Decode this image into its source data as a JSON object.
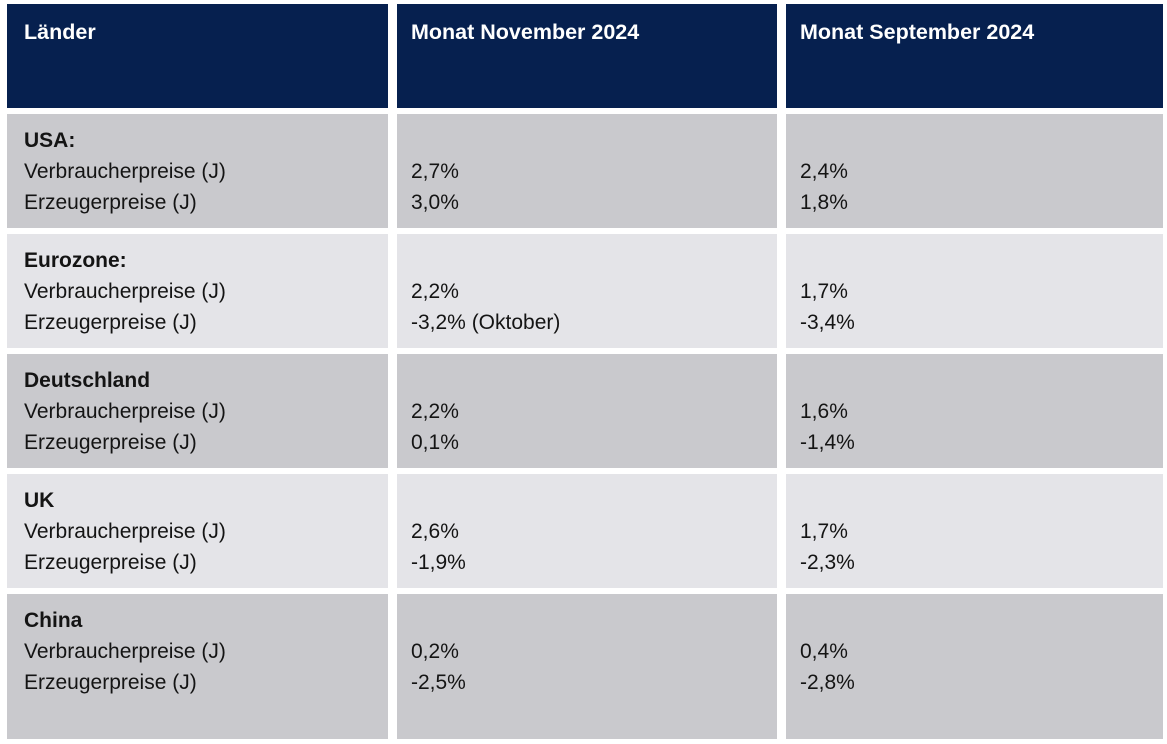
{
  "chart_data": {
    "type": "table",
    "columns": [
      "Länder",
      "Monat November 2024",
      "Monat September 2024"
    ],
    "rows": [
      {
        "country": "USA:",
        "metrics": [
          "Verbraucherpreise (J)",
          "Erzeugerpreise (J)"
        ],
        "november": [
          "2,7%",
          "3,0%"
        ],
        "september": [
          "2,4%",
          "1,8%"
        ]
      },
      {
        "country": "Eurozone:",
        "metrics": [
          "Verbraucherpreise (J)",
          "Erzeugerpreise (J)"
        ],
        "november": [
          "2,2%",
          "-3,2% (Oktober)"
        ],
        "september": [
          "1,7%",
          "-3,4%"
        ]
      },
      {
        "country": "Deutschland",
        "metrics": [
          "Verbraucherpreise (J)",
          "Erzeugerpreise (J)"
        ],
        "november": [
          "2,2%",
          "0,1%"
        ],
        "september": [
          "1,6%",
          "-1,4%"
        ]
      },
      {
        "country": "UK",
        "metrics": [
          "Verbraucherpreise (J)",
          "Erzeugerpreise (J)"
        ],
        "november": [
          "2,6%",
          "-1,9%"
        ],
        "september": [
          "1,7%",
          "-2,3%"
        ]
      },
      {
        "country": "China",
        "metrics": [
          "Verbraucherpreise (J)",
          "Erzeugerpreise (J)"
        ],
        "november": [
          "0,2%",
          "-2,5%"
        ],
        "september": [
          "0,4%",
          "-2,8%"
        ]
      }
    ]
  },
  "colors": {
    "header_bg": "#06204f",
    "header_text": "#ffffff",
    "row_odd_bg": "#c9c9cd",
    "row_even_bg": "#e4e4e8",
    "body_text": "#141414",
    "page_bg": "#ffffff"
  }
}
